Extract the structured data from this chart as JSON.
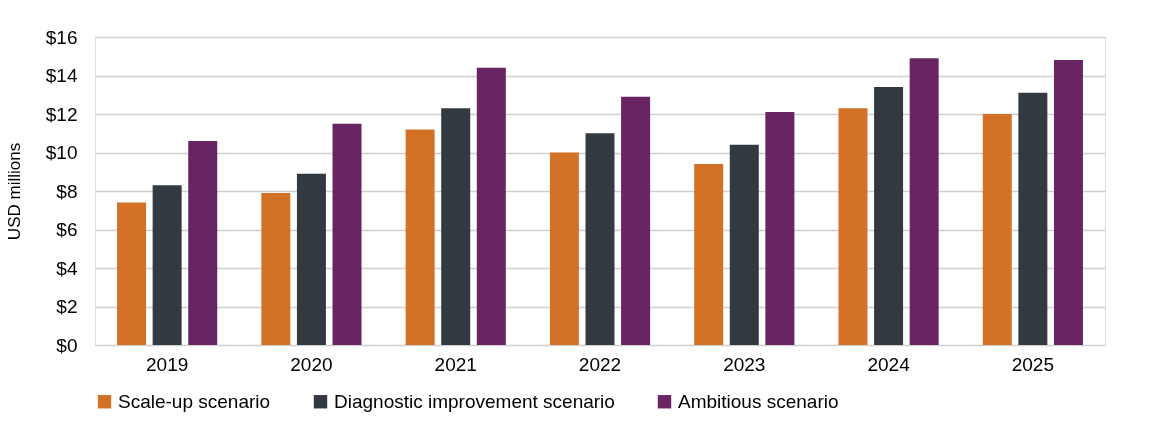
{
  "chart_data": {
    "type": "bar",
    "ylabel": "USD millions",
    "categories": [
      "2019",
      "2020",
      "2021",
      "2022",
      "2023",
      "2024",
      "2025"
    ],
    "series": [
      {
        "name": "Scale-up scenario",
        "color": "#d37227",
        "values": [
          7.4,
          7.9,
          11.2,
          10.0,
          9.4,
          12.3,
          12.0
        ]
      },
      {
        "name": "Diagnostic improvement scenario",
        "color": "#323940",
        "values": [
          8.3,
          8.9,
          12.3,
          11.0,
          10.4,
          13.4,
          13.1
        ]
      },
      {
        "name": "Ambitious scenario",
        "color": "#692563",
        "values": [
          10.6,
          11.5,
          14.4,
          12.9,
          12.1,
          14.9,
          14.8
        ]
      }
    ],
    "ylim": [
      0,
      16
    ],
    "yticks": [
      {
        "value": 0,
        "label": "$0"
      },
      {
        "value": 2,
        "label": "$2"
      },
      {
        "value": 4,
        "label": "$4"
      },
      {
        "value": 6,
        "label": "$6"
      },
      {
        "value": 8,
        "label": "$8"
      },
      {
        "value": 10,
        "label": "$10"
      },
      {
        "value": 12,
        "label": "$12"
      },
      {
        "value": 14,
        "label": "$14"
      },
      {
        "value": 16,
        "label": "$16"
      }
    ],
    "grid": "y",
    "legend": "bottom"
  }
}
